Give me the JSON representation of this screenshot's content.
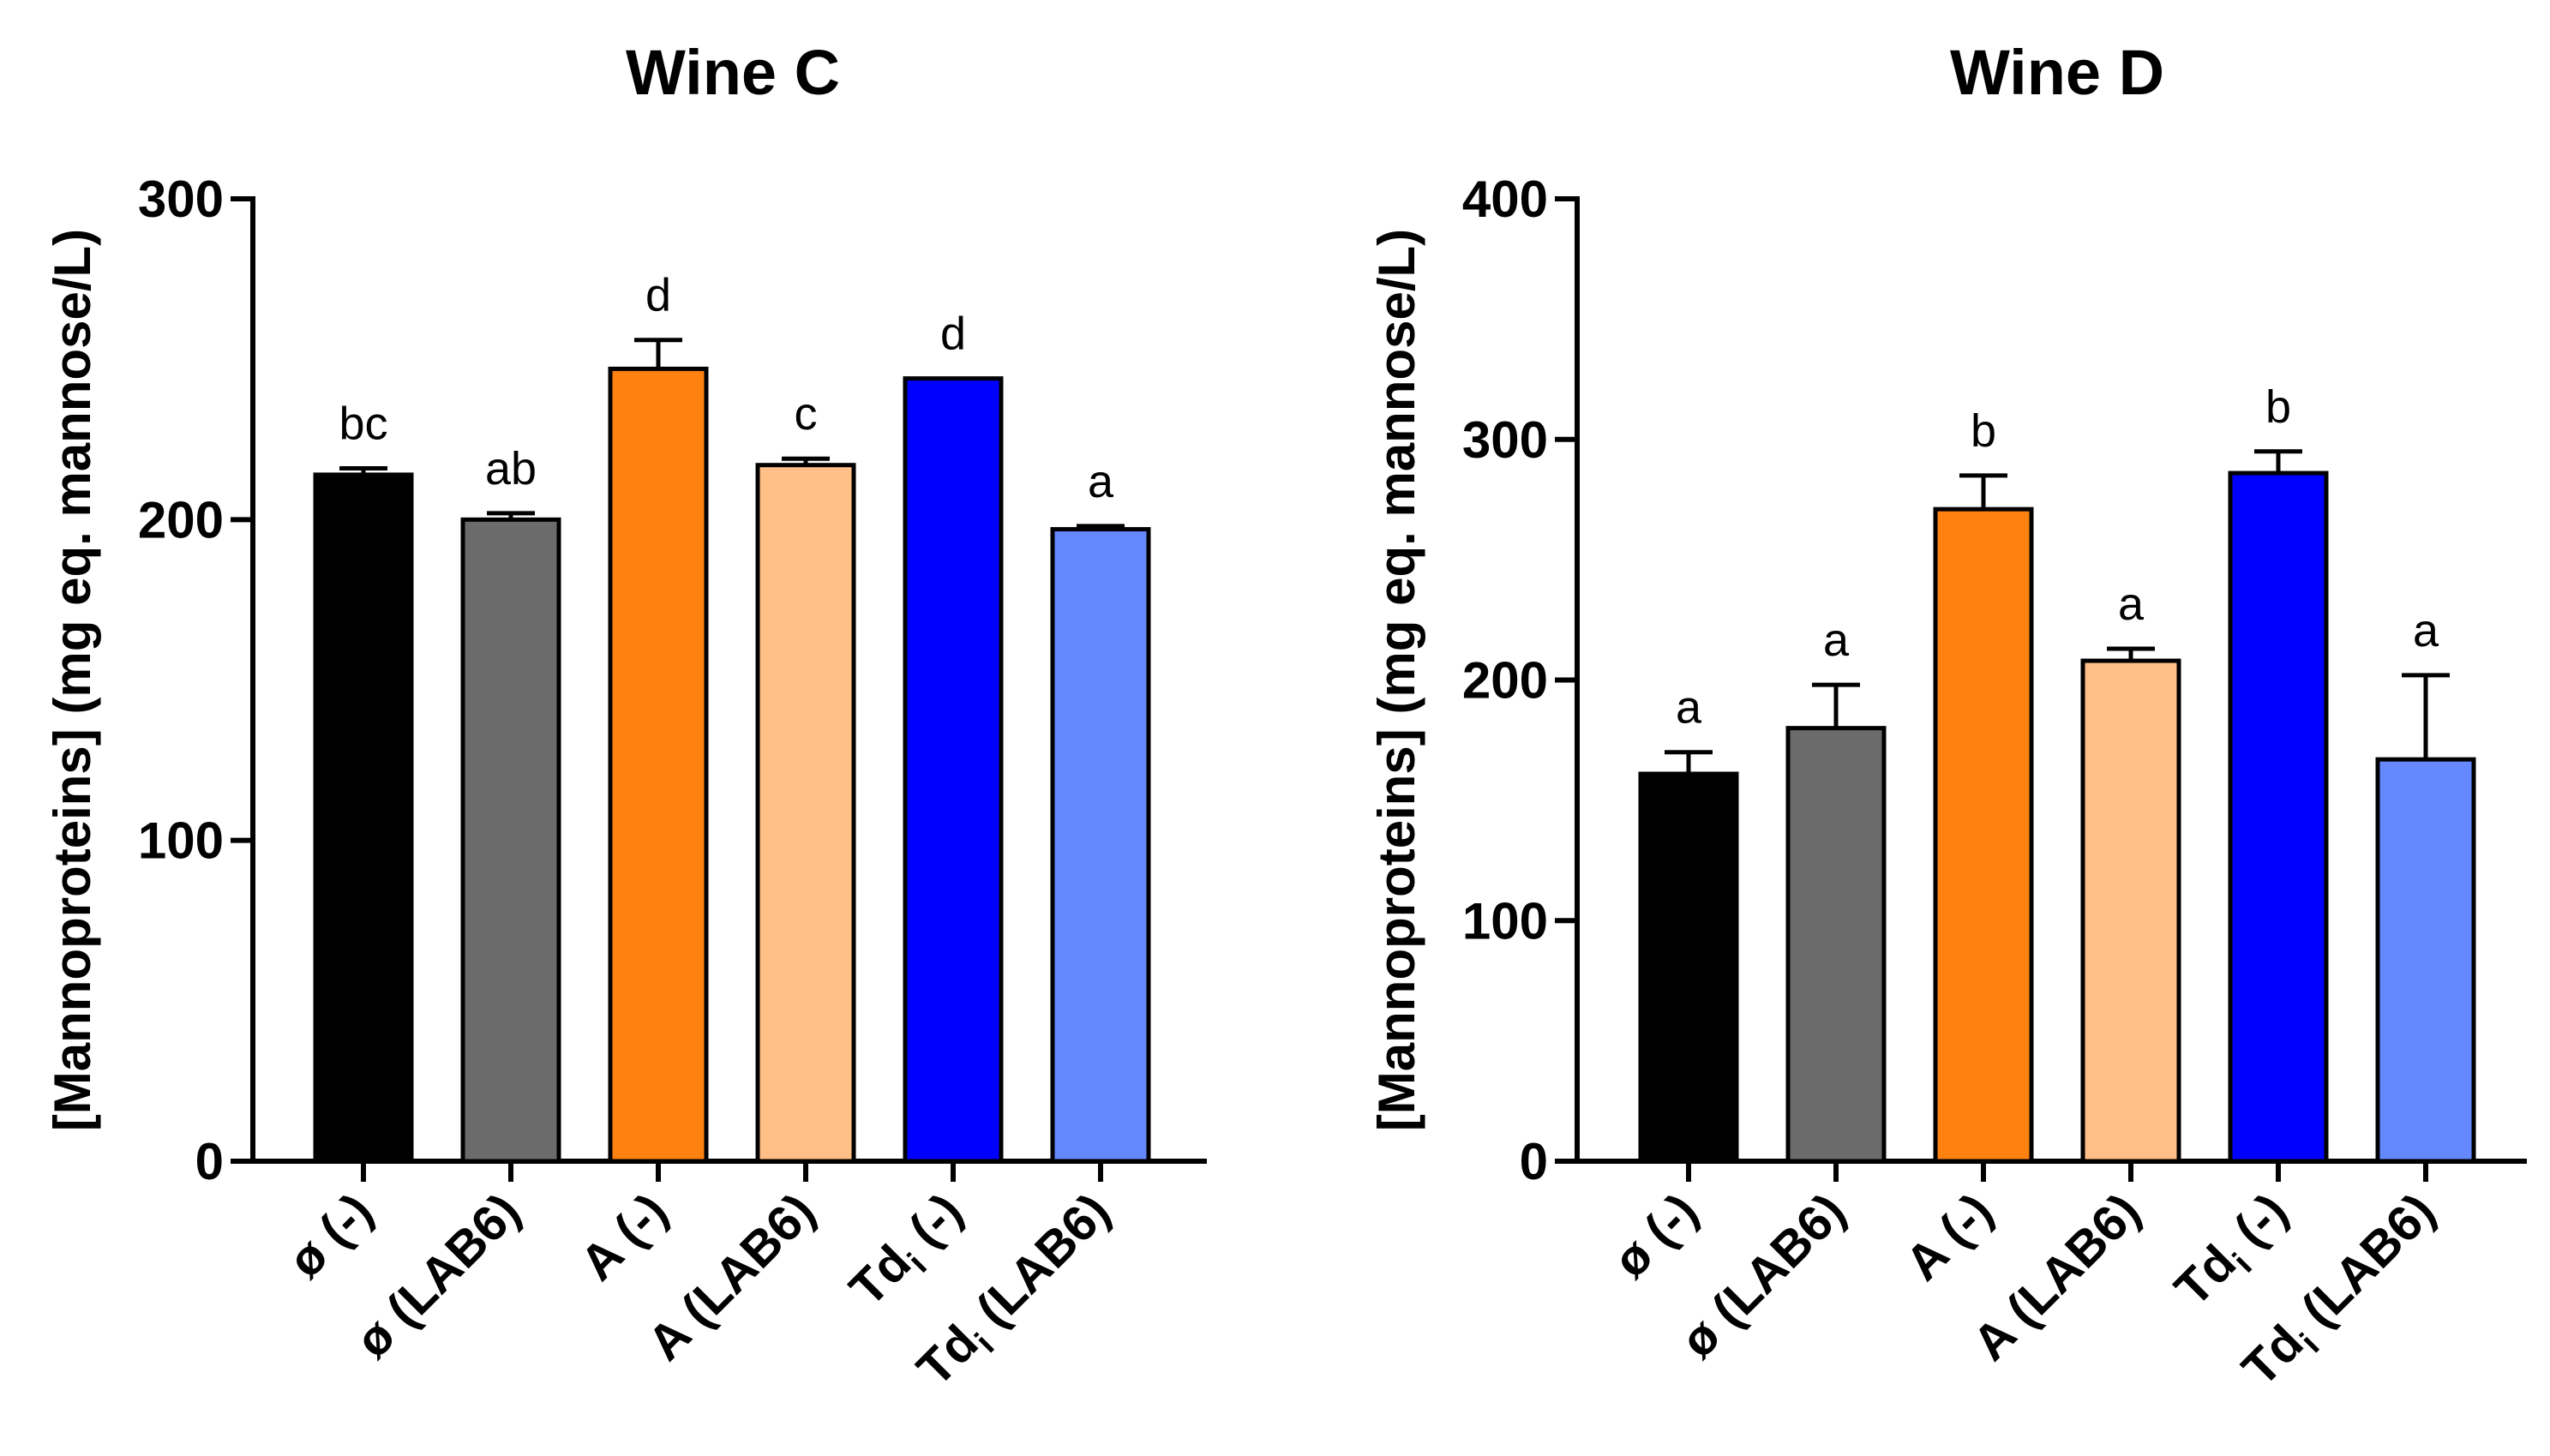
{
  "chart_data": [
    {
      "type": "bar",
      "title": "Wine C",
      "xlabel": "",
      "ylabel": "[Mannoproteins] (mg eq. mannose/L)",
      "ylim": [
        0,
        300
      ],
      "yticks": [
        0,
        100,
        200,
        300
      ],
      "categories": [
        {
          "main": "ø (-)",
          "sub": ""
        },
        {
          "main": "ø (LAB6)",
          "sub": ""
        },
        {
          "main": "A (-)",
          "sub": ""
        },
        {
          "main": "A (LAB6)",
          "sub": ""
        },
        {
          "main": "Td",
          "sub": "i",
          "suffix": " (-)"
        },
        {
          "main": "Td",
          "sub": "i",
          "suffix": " (LAB6)"
        }
      ],
      "values": [
        214,
        200,
        247,
        217,
        244,
        197
      ],
      "errors": [
        2,
        2,
        9,
        2,
        0,
        1
      ],
      "significance": [
        "bc",
        "ab",
        "d",
        "c",
        "d",
        "a"
      ],
      "colors": [
        "#000000",
        "#6b6b6b",
        "#ff8210",
        "#ffbf86",
        "#0000ff",
        "#6688ff"
      ]
    },
    {
      "type": "bar",
      "title": "Wine D",
      "xlabel": "",
      "ylabel": "[Mannoproteins] (mg eq. mannose/L)",
      "ylim": [
        0,
        400
      ],
      "yticks": [
        0,
        100,
        200,
        300,
        400
      ],
      "categories": [
        {
          "main": "ø (-)",
          "sub": ""
        },
        {
          "main": "ø (LAB6)",
          "sub": ""
        },
        {
          "main": "A (-)",
          "sub": ""
        },
        {
          "main": "A (LAB6)",
          "sub": ""
        },
        {
          "main": "Td",
          "sub": "i",
          "suffix": " (-)"
        },
        {
          "main": "Td",
          "sub": "i",
          "suffix": " (LAB6)"
        }
      ],
      "values": [
        161,
        180,
        271,
        208,
        286,
        167
      ],
      "errors": [
        9,
        18,
        14,
        5,
        9,
        35
      ],
      "significance": [
        "a",
        "a",
        "b",
        "a",
        "b",
        "a"
      ],
      "colors": [
        "#000000",
        "#6b6b6b",
        "#ff8210",
        "#ffbf86",
        "#0000ff",
        "#6688ff"
      ]
    }
  ]
}
